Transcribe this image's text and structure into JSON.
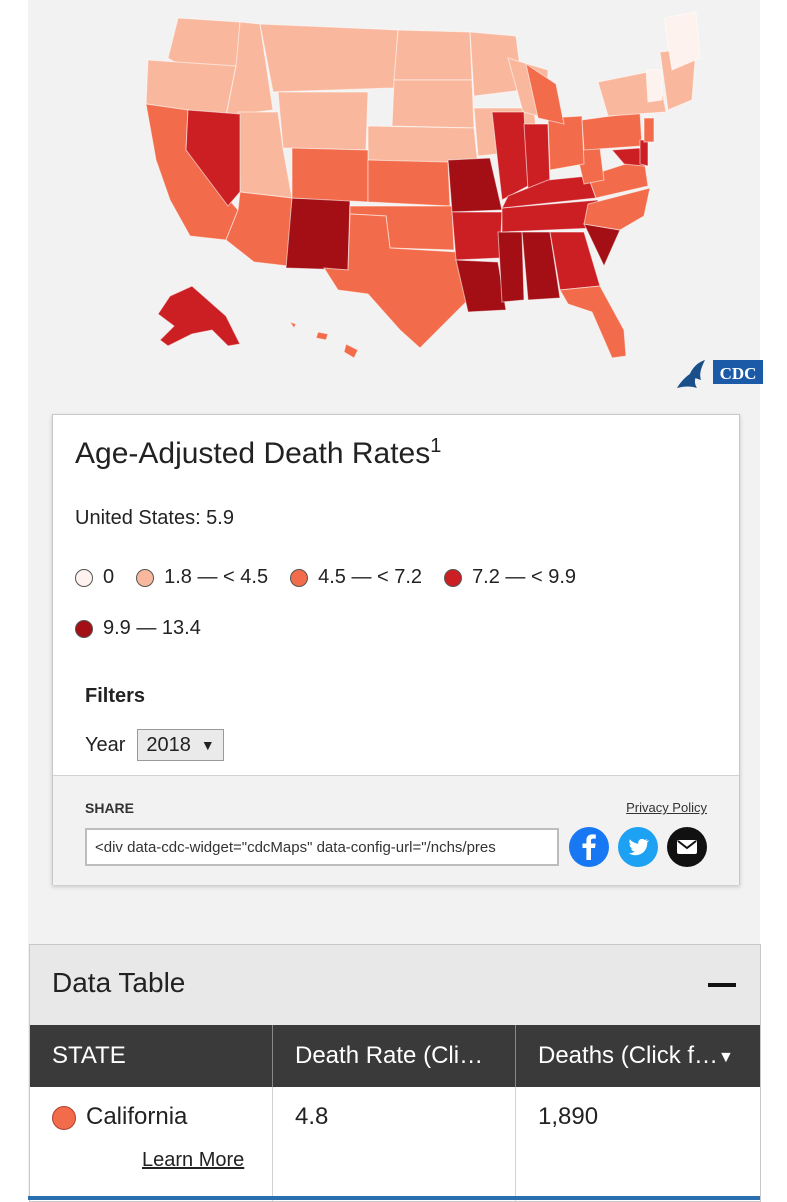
{
  "colors": {
    "zero": "#fdf2ee",
    "bin1": "#f9b89d",
    "bin2": "#f26b4a",
    "bin3": "#cc1f23",
    "bin4": "#a30f14",
    "facebook": "#1877f2",
    "twitter": "#1da1f2",
    "email": "#111111"
  },
  "legend": {
    "title": "Age-Adjusted Death Rates",
    "footnote": "1",
    "us_rate": "United States: 5.9",
    "items": [
      {
        "label": "0",
        "color": "#fdf2ee"
      },
      {
        "label": "1.8 — < 4.5",
        "color": "#f9b89d"
      },
      {
        "label": "4.5 — < 7.2",
        "color": "#f26b4a"
      },
      {
        "label": "7.2 — < 9.9",
        "color": "#cc1f23"
      },
      {
        "label": "9.9 — 13.4",
        "color": "#a30f14"
      }
    ]
  },
  "filters": {
    "label": "Filters",
    "year_label": "Year",
    "year_value": "2018"
  },
  "share": {
    "label": "SHARE",
    "privacy": "Privacy Policy",
    "embed_value": "<div data-cdc-widget=\"cdcMaps\" data-config-url=\"/nchs/pres"
  },
  "logo": {
    "text": "CDC"
  },
  "data_table": {
    "title": "Data Table",
    "columns": [
      "STATE",
      "Death Rate (Cli…",
      "Deaths (Click f…"
    ],
    "rows": [
      {
        "state": "California",
        "rate": "4.8",
        "deaths": "1,890",
        "link": "Learn More"
      }
    ]
  }
}
